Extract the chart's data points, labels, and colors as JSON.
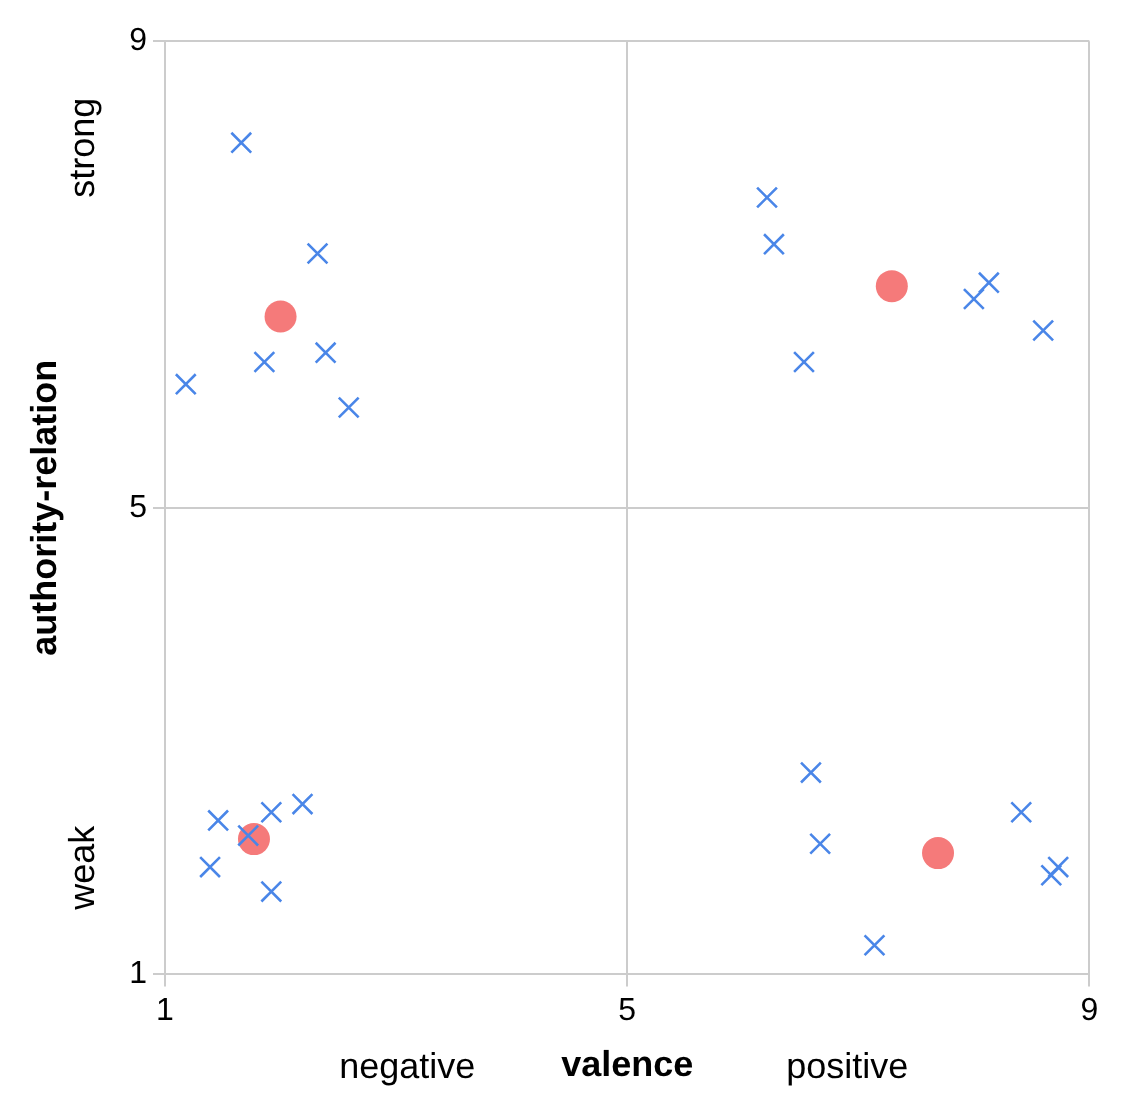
{
  "chart_data": {
    "type": "scatter",
    "xlabel": "valence",
    "ylabel": "authority-relation",
    "annotations": [
      "negative",
      "positive",
      "strong",
      "weak"
    ],
    "xlim": [
      1,
      9
    ],
    "xticks": [
      1,
      5,
      9
    ],
    "ylim": [
      1,
      9
    ],
    "yticks": [
      1,
      5,
      9
    ],
    "grid": true,
    "legend": false,
    "series": [
      {
        "color": "#4a86e8",
        "marker": "cross",
        "x": [
          1.66,
          2.32,
          1.86,
          2.39,
          1.18,
          2.59,
          6.21,
          6.27,
          8.13,
          8.0,
          8.6,
          6.53,
          1.46,
          1.92,
          2.19,
          1.72,
          1.39,
          1.92,
          6.59,
          6.67,
          8.41,
          8.67,
          8.73,
          7.14
        ],
        "values": [
          8.13,
          7.18,
          6.25,
          6.33,
          6.06,
          5.86,
          7.66,
          7.26,
          6.93,
          6.79,
          6.52,
          6.25,
          2.32,
          2.39,
          2.46,
          2.19,
          1.92,
          1.71,
          2.73,
          2.12,
          2.39,
          1.85,
          1.92,
          1.25
        ]
      },
      {
        "color": "#f57a7a",
        "marker": "circle",
        "x": [
          2.0,
          7.29,
          1.77,
          7.69
        ],
        "values": [
          6.64,
          6.9,
          2.16,
          2.04
        ]
      }
    ]
  }
}
